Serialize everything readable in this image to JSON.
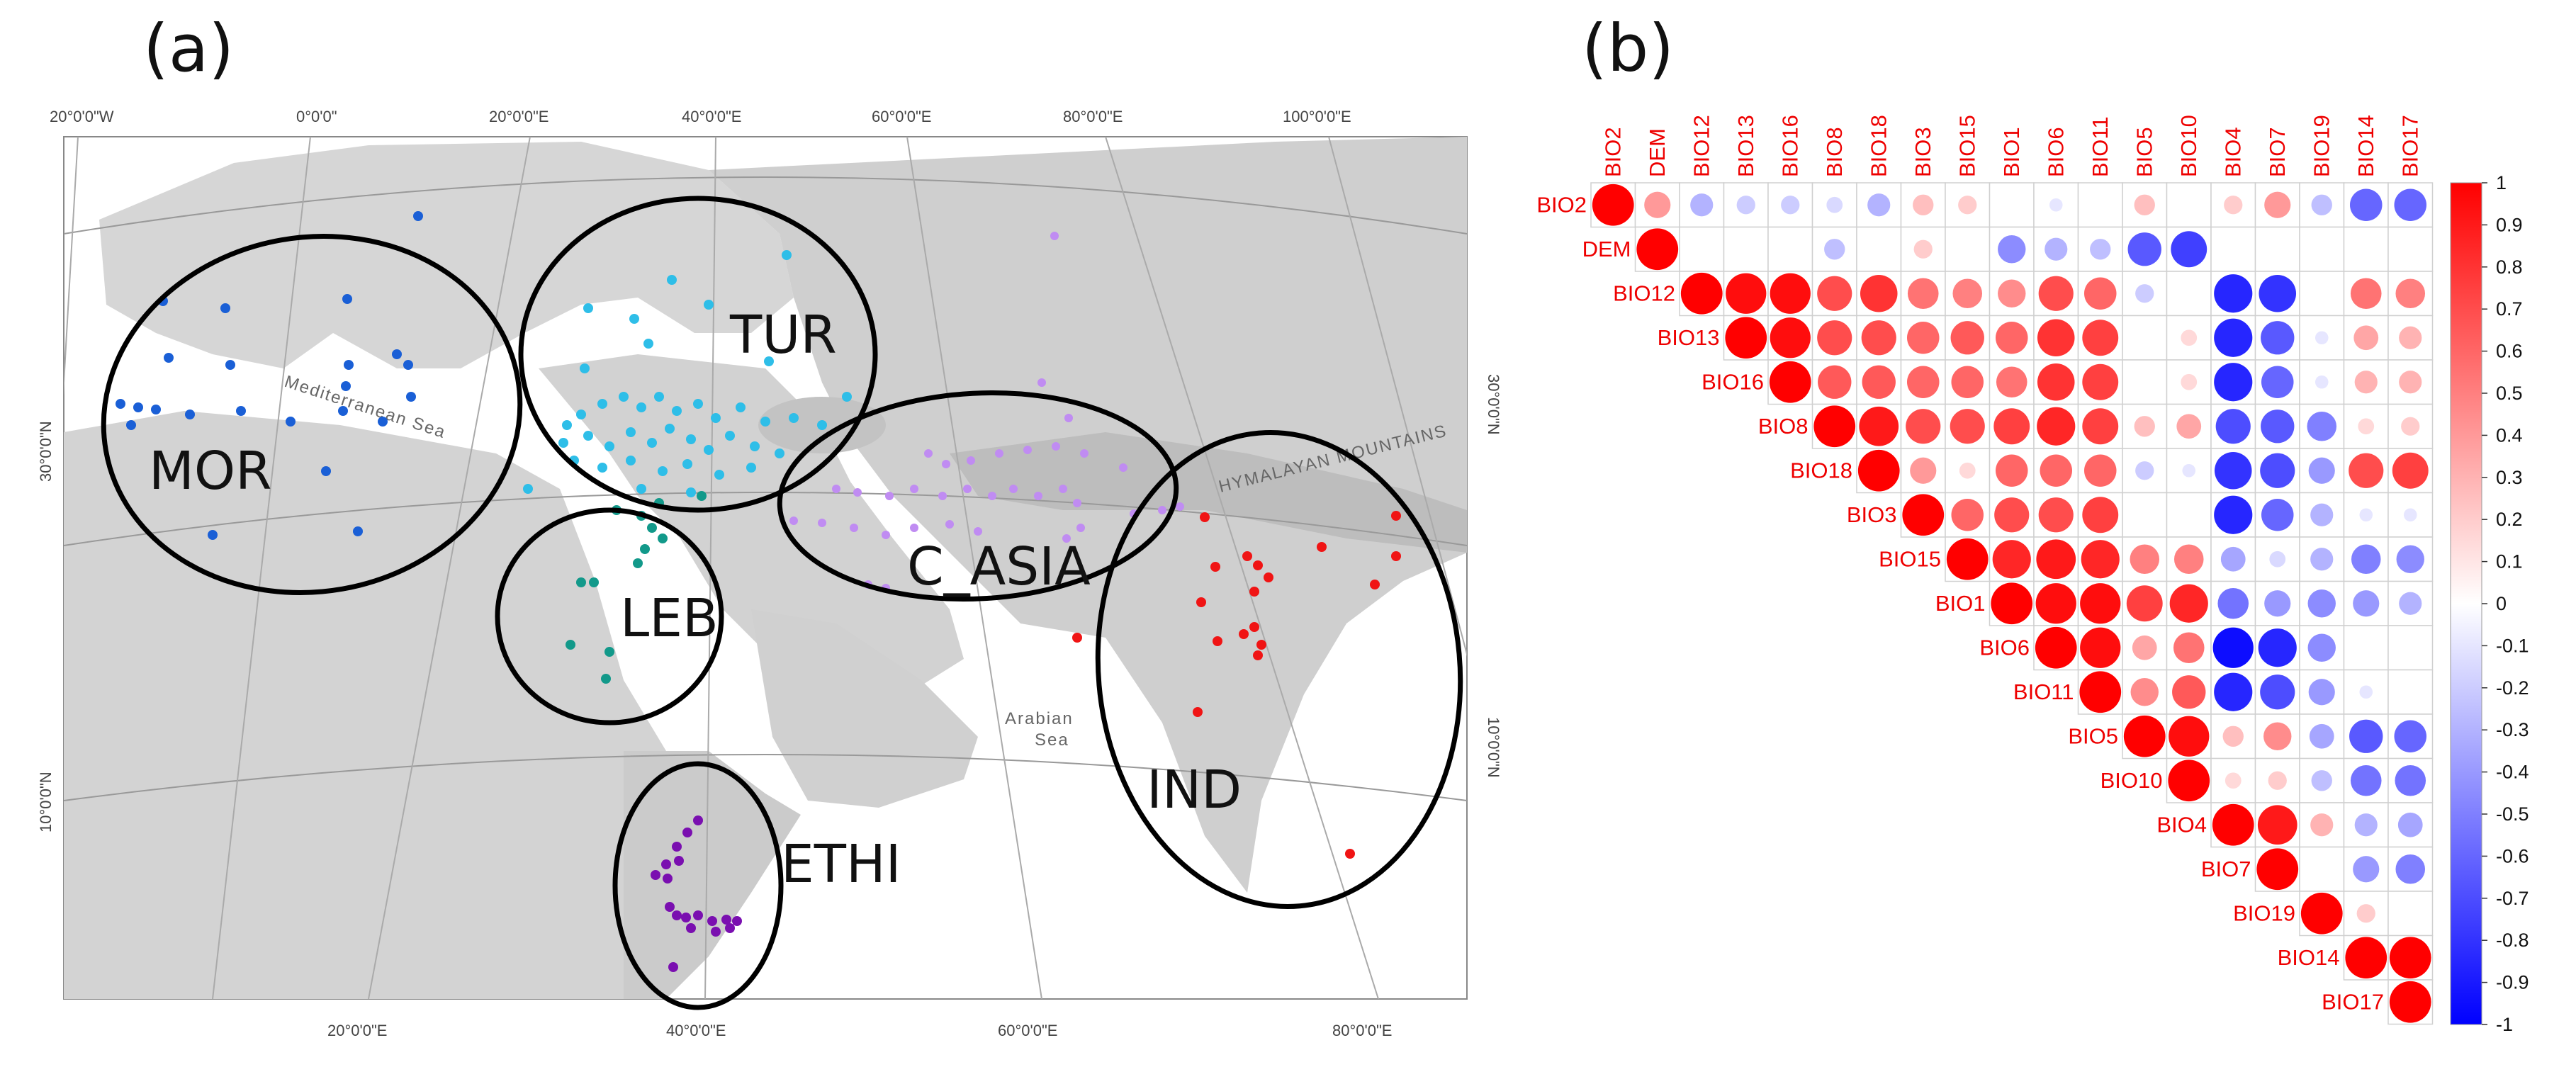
{
  "panels": {
    "a": "(a)",
    "b": "(b)"
  },
  "map": {
    "top_labels": [
      "20°0'0\"W",
      "0°0'0\"",
      "20°0'0\"E",
      "40°0'0\"E",
      "60°0'0\"E",
      "80°0'0\"E",
      "100°0'0\"E"
    ],
    "bottom_labels": [
      "20°0'0\"E",
      "40°0'0\"E",
      "60°0'0\"E",
      "80°0'0\"E"
    ],
    "left_labels": [
      "30°0'0\"N",
      "10°0'0\"N"
    ],
    "right_labels": [
      "30°0'0\"N",
      "10°0'0\"N"
    ],
    "sea_labels": {
      "mediterranean": "Mediterranean Sea",
      "arabian_1": "Arabian",
      "arabian_2": "Sea",
      "himalaya": "HYMALAYAN MOUNTAINS"
    },
    "regions": [
      {
        "id": "mor",
        "label": "MOR",
        "color": "#1a5fd6"
      },
      {
        "id": "tur",
        "label": "TUR",
        "color": "#2ebee8"
      },
      {
        "id": "leb",
        "label": "LEB",
        "color": "#12998a"
      },
      {
        "id": "c_asia",
        "label": "C_ASIA",
        "color": "#c08cf2"
      },
      {
        "id": "ind",
        "label": "IND",
        "color": "#f01414"
      },
      {
        "id": "ethi",
        "label": "ETHI",
        "color": "#7a0fb0"
      }
    ]
  },
  "chart_data": {
    "type": "heatmap",
    "subtype": "correlation-upper-triangle-circles",
    "variables": [
      "BIO2",
      "DEM",
      "BIO12",
      "BIO13",
      "BIO16",
      "BIO8",
      "BIO18",
      "BIO3",
      "BIO15",
      "BIO1",
      "BIO6",
      "BIO11",
      "BIO5",
      "BIO10",
      "BIO4",
      "BIO7",
      "BIO19",
      "BIO14",
      "BIO17"
    ],
    "matrix": [
      [
        1,
        0.4,
        -0.3,
        -0.2,
        -0.2,
        -0.15,
        -0.3,
        0.25,
        0.2,
        0,
        -0.1,
        0,
        0.25,
        0,
        0.2,
        0.4,
        -0.25,
        -0.6,
        -0.6
      ],
      [
        null,
        1,
        0,
        0,
        0,
        -0.25,
        0,
        0.2,
        0,
        -0.45,
        -0.3,
        -0.25,
        -0.65,
        -0.75,
        0,
        0,
        0,
        0,
        0
      ],
      [
        null,
        null,
        1,
        0.95,
        0.95,
        0.7,
        0.8,
        0.55,
        0.5,
        0.45,
        0.7,
        0.6,
        -0.2,
        0,
        -0.85,
        -0.8,
        0,
        0.55,
        0.5
      ],
      [
        null,
        null,
        null,
        1,
        0.95,
        0.7,
        0.7,
        0.6,
        0.65,
        0.6,
        0.8,
        0.75,
        0,
        0.15,
        -0.85,
        -0.65,
        -0.1,
        0.35,
        0.3
      ],
      [
        null,
        null,
        null,
        null,
        1,
        0.65,
        0.65,
        0.6,
        0.6,
        0.55,
        0.8,
        0.75,
        0,
        0.15,
        -0.85,
        -0.6,
        -0.1,
        0.3,
        0.3
      ],
      [
        null,
        null,
        null,
        null,
        null,
        1,
        0.9,
        0.7,
        0.7,
        0.75,
        0.85,
        0.75,
        0.25,
        0.35,
        -0.7,
        -0.65,
        -0.5,
        0.15,
        0.2
      ],
      [
        null,
        null,
        null,
        null,
        null,
        null,
        1,
        0.4,
        0.15,
        0.6,
        0.6,
        0.6,
        -0.2,
        -0.1,
        -0.8,
        -0.7,
        -0.4,
        0.7,
        0.75
      ],
      [
        null,
        null,
        null,
        null,
        null,
        null,
        null,
        1,
        0.6,
        0.7,
        0.7,
        0.75,
        0,
        0,
        -0.85,
        -0.6,
        -0.3,
        -0.1,
        -0.1
      ],
      [
        null,
        null,
        null,
        null,
        null,
        null,
        null,
        null,
        1,
        0.85,
        0.9,
        0.85,
        0.5,
        0.5,
        -0.35,
        -0.15,
        -0.3,
        -0.5,
        -0.45
      ],
      [
        null,
        null,
        null,
        null,
        null,
        null,
        null,
        null,
        null,
        1,
        0.95,
        0.95,
        0.75,
        0.85,
        -0.55,
        -0.4,
        -0.45,
        -0.4,
        -0.3
      ],
      [
        null,
        null,
        null,
        null,
        null,
        null,
        null,
        null,
        null,
        null,
        1,
        0.95,
        0.35,
        0.55,
        -0.95,
        -0.85,
        -0.45,
        0,
        0
      ],
      [
        null,
        null,
        null,
        null,
        null,
        null,
        null,
        null,
        null,
        null,
        null,
        1,
        0.45,
        0.65,
        -0.85,
        -0.7,
        -0.4,
        -0.1,
        0
      ],
      [
        null,
        null,
        null,
        null,
        null,
        null,
        null,
        null,
        null,
        null,
        null,
        null,
        1,
        0.95,
        0.25,
        0.45,
        -0.35,
        -0.65,
        -0.6
      ],
      [
        null,
        null,
        null,
        null,
        null,
        null,
        null,
        null,
        null,
        null,
        null,
        null,
        null,
        1,
        0.15,
        0.2,
        -0.25,
        -0.55,
        -0.55
      ],
      [
        null,
        null,
        null,
        null,
        null,
        null,
        null,
        null,
        null,
        null,
        null,
        null,
        null,
        null,
        1,
        0.9,
        0.3,
        -0.3,
        -0.35
      ],
      [
        null,
        null,
        null,
        null,
        null,
        null,
        null,
        null,
        null,
        null,
        null,
        null,
        null,
        null,
        null,
        1,
        0,
        -0.4,
        -0.5
      ],
      [
        null,
        null,
        null,
        null,
        null,
        null,
        null,
        null,
        null,
        null,
        null,
        null,
        null,
        null,
        null,
        null,
        1,
        0.2,
        0
      ],
      [
        null,
        null,
        null,
        null,
        null,
        null,
        null,
        null,
        null,
        null,
        null,
        null,
        null,
        null,
        null,
        null,
        null,
        1,
        1
      ],
      [
        null,
        null,
        null,
        null,
        null,
        null,
        null,
        null,
        null,
        null,
        null,
        null,
        null,
        null,
        null,
        null,
        null,
        null,
        1
      ]
    ],
    "colorbar": {
      "range": [
        -1,
        1
      ],
      "ticks": [
        "1",
        "0.9",
        "0.8",
        "0.7",
        "0.6",
        "0.5",
        "0.4",
        "0.3",
        "0.2",
        "0.1",
        "0",
        "-0.1",
        "-0.2",
        "-0.3",
        "-0.4",
        "-0.5",
        "-0.6",
        "-0.7",
        "-0.8",
        "-0.9",
        "-1"
      ],
      "colors": [
        "#0000ff",
        "#ffffff",
        "#ff0000"
      ]
    },
    "label_color": "#ee0000"
  }
}
